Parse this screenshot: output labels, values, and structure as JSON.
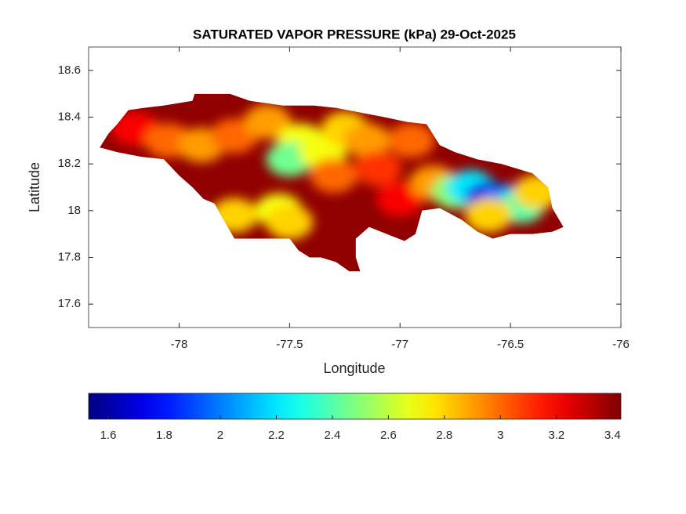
{
  "chart_data": {
    "type": "map",
    "title": "SATURATED VAPOR PRESSURE (kPa) 29-Oct-2025",
    "xlabel": "Longitude",
    "ylabel": "Latitude",
    "xlim": [
      -78.41,
      -76
    ],
    "xticks": [
      -78,
      -77.5,
      -77,
      -76.5,
      -76
    ],
    "ylim": [
      17.5,
      18.7
    ],
    "yticks": [
      17.6,
      17.8,
      18,
      18.2,
      18.4,
      18.6
    ],
    "colormap": "jet",
    "clim": [
      1.53,
      3.43
    ],
    "colorbar_ticks": [
      1.6,
      1.8,
      2,
      2.2,
      2.4,
      2.6,
      2.8,
      3,
      3.2,
      3.4
    ],
    "base_value": 3.4,
    "outline": {
      "lon": [
        -78.36,
        -78.32,
        -78.28,
        -78.23,
        -78.16,
        -78.07,
        -77.94,
        -77.93,
        -77.77,
        -77.68,
        -77.53,
        -77.39,
        -77.29,
        -77.18,
        -77.07,
        -76.97,
        -76.88,
        -76.82,
        -76.75,
        -76.65,
        -76.54,
        -76.4,
        -76.33,
        -76.31,
        -76.26,
        -76.31,
        -76.4,
        -76.5,
        -76.58,
        -76.65,
        -76.72,
        -76.82,
        -76.9,
        -76.93,
        -76.98,
        -77.06,
        -77.14,
        -77.2,
        -77.2,
        -77.18,
        -77.23,
        -77.29,
        -77.36,
        -77.41,
        -77.46,
        -77.5,
        -77.61,
        -77.75,
        -77.78,
        -77.84,
        -77.89,
        -77.94,
        -78.0,
        -78.07,
        -78.17,
        -78.28
      ],
      "lat": [
        18.27,
        18.33,
        18.37,
        18.43,
        18.44,
        18.45,
        18.47,
        18.5,
        18.5,
        18.47,
        18.45,
        18.45,
        18.44,
        18.42,
        18.4,
        18.38,
        18.37,
        18.28,
        18.25,
        18.22,
        18.2,
        18.16,
        18.1,
        18.01,
        17.93,
        17.91,
        17.9,
        17.9,
        17.88,
        17.91,
        17.96,
        18.01,
        18.0,
        17.9,
        17.87,
        17.9,
        17.93,
        17.88,
        17.8,
        17.74,
        17.74,
        17.78,
        17.8,
        17.8,
        17.83,
        17.88,
        17.88,
        17.88,
        17.93,
        18.03,
        18.05,
        18.1,
        18.15,
        18.22,
        18.23,
        18.25
      ]
    },
    "samples": {
      "lon": [
        -78.2,
        -78.05,
        -77.9,
        -77.75,
        -77.6,
        -77.45,
        -77.5,
        -77.35,
        -77.25,
        -77.3,
        -77.15,
        -77.1,
        -76.95,
        -77.55,
        -77.5,
        -77.75,
        -77.0,
        -76.85,
        -76.75,
        -76.68,
        -76.6,
        -76.52,
        -76.45,
        -76.6,
        -76.38
      ],
      "lat": [
        18.35,
        18.3,
        18.28,
        18.32,
        18.38,
        18.3,
        18.22,
        18.25,
        18.35,
        18.15,
        18.3,
        18.18,
        18.3,
        18.0,
        17.95,
        17.98,
        18.05,
        18.12,
        18.08,
        18.1,
        18.05,
        18.04,
        18.02,
        17.98,
        18.08
      ],
      "values": [
        3.2,
        3.0,
        2.9,
        3.0,
        2.9,
        2.7,
        2.45,
        2.7,
        2.8,
        3.0,
        2.9,
        3.1,
        3.0,
        2.7,
        2.8,
        2.8,
        3.2,
        2.9,
        2.5,
        2.2,
        1.7,
        2.0,
        2.4,
        2.8,
        2.8
      ]
    }
  }
}
